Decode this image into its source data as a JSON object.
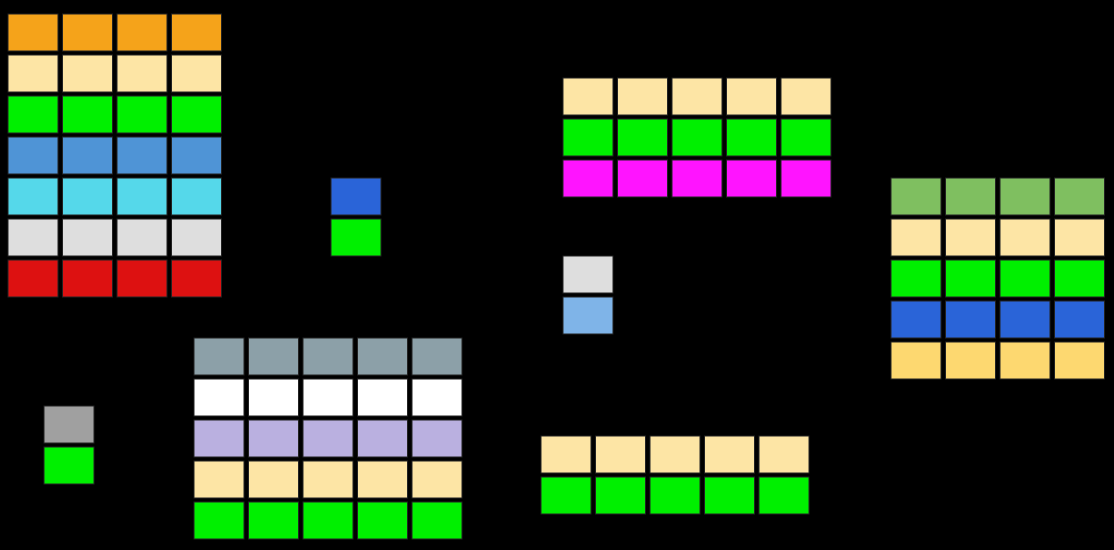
{
  "grids": [
    {
      "rows": [
        "#f5a31a",
        "#fde5a5",
        "#00f000",
        "#4f94d6",
        "#55d8ea",
        "#dedede",
        "#dd1111"
      ]
    },
    {
      "rows": [
        "#2a64d8",
        "#00f000"
      ]
    },
    {
      "rows": [
        "#fde5a5",
        "#00f000",
        "#ff14ff"
      ]
    },
    {
      "rows": [
        "#7fbf60",
        "#fde5a5",
        "#00f000",
        "#2a64d8",
        "#fdd870"
      ]
    },
    {
      "rows": [
        "#dedede",
        "#7fb4e8"
      ]
    },
    {
      "rows": [
        "#8ca0a8",
        "#ffffff",
        "#bab0e0",
        "#fde5a5",
        "#00f000"
      ]
    },
    {
      "rows": [
        "#a0a0a0",
        "#00f000"
      ]
    },
    {
      "rows": [
        "#fde5a5",
        "#00f000"
      ]
    }
  ]
}
